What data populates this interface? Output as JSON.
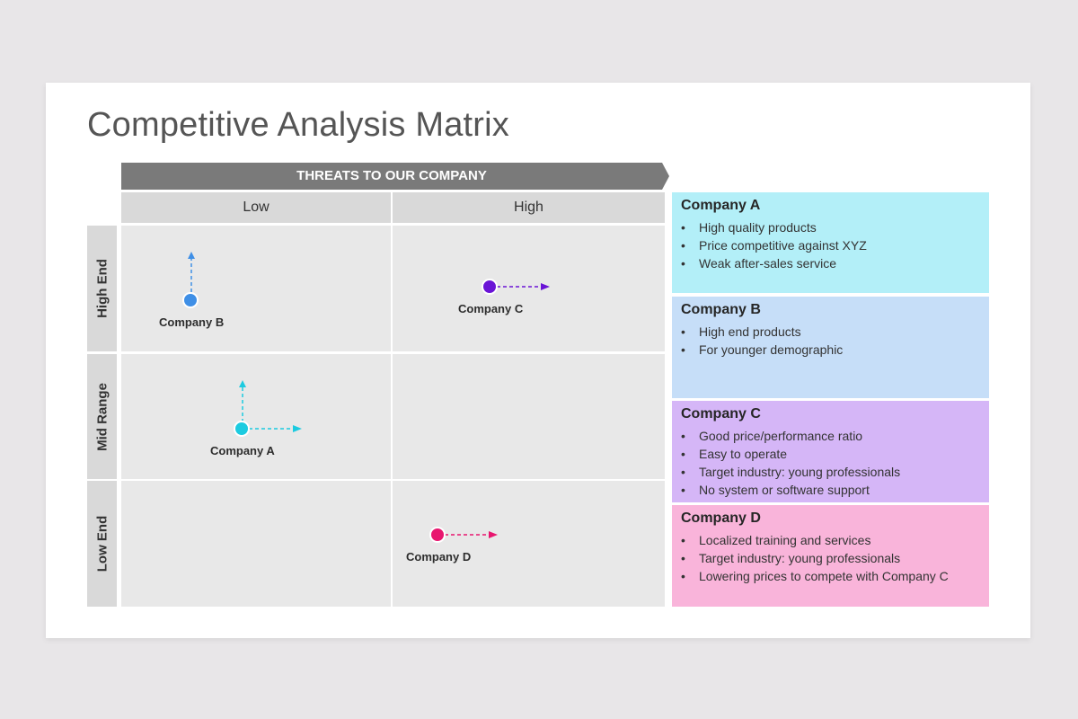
{
  "title": "Competitive Analysis Matrix",
  "banner": {
    "label": "THREATS TO OUR COMPANY"
  },
  "columns": [
    "Low",
    "High"
  ],
  "rows": [
    "High End",
    "Mid Range",
    "Low End"
  ],
  "plot": {
    "companies": [
      {
        "label": "Company B",
        "color": "#3f8fe6",
        "arrows": [
          "up"
        ]
      },
      {
        "label": "Company C",
        "color": "#6a14d6",
        "arrows": [
          "right"
        ]
      },
      {
        "label": "Company A",
        "color": "#1ccbe0",
        "arrows": [
          "up",
          "right"
        ]
      },
      {
        "label": "Company D",
        "color": "#e8166f",
        "arrows": [
          "right"
        ]
      }
    ]
  },
  "panels": [
    {
      "title": "Company A",
      "color": "#b3eff8",
      "bullet": "•",
      "items": [
        "High quality products",
        "Price competitive against XYZ",
        "Weak after-sales service"
      ]
    },
    {
      "title": "Company B",
      "color": "#c6def8",
      "bullet": "•",
      "items": [
        "High end products",
        "For younger demographic"
      ]
    },
    {
      "title": "Company C",
      "color": "#d5b6f7",
      "bullet": "•",
      "items": [
        "Good price/performance ratio",
        "Easy to operate",
        "Target industry: young professionals",
        "No system or software support"
      ]
    },
    {
      "title": "Company D",
      "color": "#f9b4da",
      "bullet": "•",
      "items": [
        "Localized training and services",
        "Target industry: young professionals",
        "Lowering prices to compete with Company C"
      ]
    }
  ]
}
